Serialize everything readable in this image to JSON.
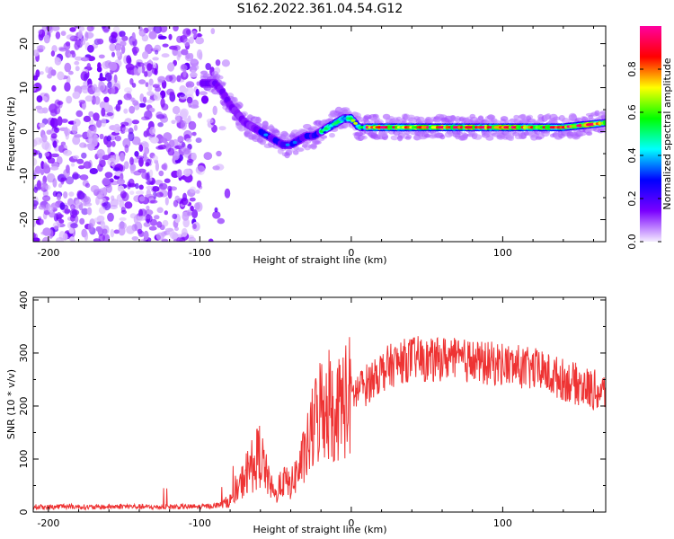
{
  "title": "S162.2022.361.04.54.G12",
  "chart_data": [
    {
      "type": "heatmap",
      "xlabel": "Height of straight line (km)",
      "ylabel": "Frequency (Hz)",
      "xlim": [
        -210,
        168
      ],
      "ylim": [
        -25,
        24
      ],
      "x_ticks": [
        -200,
        -100,
        0,
        100
      ],
      "y_ticks": [
        -20,
        -10,
        0,
        10,
        20
      ],
      "colorbar": {
        "label": "Normalized spectral amplitude",
        "ticks": [
          0.0,
          0.2,
          0.4,
          0.6,
          0.8
        ],
        "range": [
          0,
          1
        ],
        "colors": [
          "#f4ecff",
          "#7a00ff",
          "#0000ff",
          "#00ffff",
          "#00ff00",
          "#ffff00",
          "#ff0000",
          "#ff00a0"
        ]
      },
      "ridge": {
        "x": [
          -95,
          -90,
          -85,
          -80,
          -75,
          -70,
          -65,
          -60,
          -55,
          -50,
          -45,
          -40,
          -35,
          -30,
          -25,
          -20,
          -15,
          -10,
          -5,
          0,
          5,
          10,
          20,
          40,
          60,
          80,
          100,
          120,
          140,
          168
        ],
        "y": [
          11,
          11,
          9,
          6,
          4,
          2,
          1,
          0,
          -1,
          -2,
          -3,
          -3,
          -2,
          -1,
          -1,
          0,
          1,
          2,
          3,
          3,
          1,
          1,
          1,
          1,
          1,
          1,
          1,
          1,
          1,
          2
        ]
      }
    },
    {
      "type": "line",
      "xlabel": "Height of straight line (km)",
      "ylabel": "SNR (10 * v/v)",
      "xlim": [
        -210,
        168
      ],
      "ylim": [
        0,
        405
      ],
      "x_ticks": [
        -200,
        -100,
        0,
        100
      ],
      "y_ticks": [
        0,
        100,
        200,
        300,
        400
      ],
      "color": "#ee3333",
      "series": [
        {
          "x": [
            -210,
            -200,
            -190,
            -180,
            -170,
            -160,
            -150,
            -140,
            -130,
            -120,
            -110,
            -100,
            -90,
            -85,
            -80,
            -75,
            -70,
            -65,
            -60,
            -55,
            -50,
            -45,
            -40,
            -35,
            -30,
            -25,
            -20,
            -15,
            -10,
            -5,
            0,
            5,
            10,
            15,
            20,
            25,
            30,
            35,
            40,
            45,
            50,
            55,
            60,
            65,
            70,
            75,
            80,
            85,
            90,
            95,
            100,
            105,
            110,
            115,
            120,
            125,
            130,
            135,
            140,
            145,
            150,
            155,
            160,
            165,
            168
          ],
          "values": [
            10,
            9,
            11,
            10,
            9,
            10,
            11,
            10,
            9,
            10,
            10,
            10,
            12,
            15,
            22,
            40,
            70,
            90,
            110,
            60,
            30,
            60,
            50,
            80,
            110,
            160,
            200,
            210,
            190,
            210,
            220,
            230,
            240,
            255,
            265,
            275,
            280,
            285,
            290,
            290,
            285,
            285,
            290,
            290,
            285,
            285,
            285,
            280,
            280,
            280,
            280,
            275,
            275,
            270,
            270,
            265,
            260,
            255,
            250,
            245,
            240,
            235,
            230,
            225,
            225
          ]
        }
      ]
    }
  ]
}
